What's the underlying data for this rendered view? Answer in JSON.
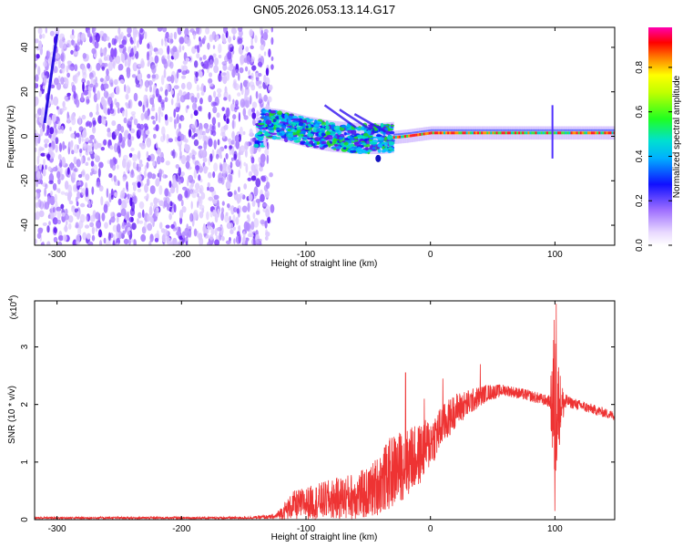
{
  "chart_data": [
    {
      "type": "heatmap",
      "title": "GN05.2026.053.13.14.G17",
      "xlabel": "Height of straight line (km)",
      "ylabel": "Frequency (Hz)",
      "xlim": [
        -318,
        148
      ],
      "ylim": [
        -49,
        49
      ],
      "xticks": [
        -300,
        -200,
        -100,
        0,
        100
      ],
      "xtick_labels": [
        "-300",
        "-200",
        "-100",
        "0",
        "100"
      ],
      "yticks": [
        -40,
        -20,
        0,
        20,
        40
      ],
      "ytick_labels": [
        "-40",
        "-20",
        "0",
        "20",
        "40"
      ],
      "colorbar": {
        "label": "Normalized spectral amplitude",
        "range": [
          0,
          0.98
        ],
        "ticks": [
          0.0,
          0.2,
          0.4,
          0.6,
          0.8
        ],
        "tick_labels": [
          "0.0",
          "0.2",
          "0.4",
          "0.6",
          "0.8"
        ]
      },
      "features": {
        "noise_region_x": [
          -318,
          -135
        ],
        "ridge_frequency_hz": [
          [
            -135,
            6
          ],
          [
            -120,
            5
          ],
          [
            -100,
            2
          ],
          [
            -80,
            0
          ],
          [
            -60,
            -1
          ],
          [
            -40,
            -1
          ],
          [
            -20,
            0
          ],
          [
            0,
            1.5
          ],
          [
            50,
            1.5
          ],
          [
            100,
            1.5
          ],
          [
            148,
            1.5
          ]
        ],
        "artifact_line": [
          [
            -310,
            6
          ],
          [
            -300,
            46
          ]
        ],
        "disturbance_at_x": 98
      }
    },
    {
      "type": "line",
      "xlabel": "Height of straight line (km)",
      "ylabel": "SNR (10 * v/v)",
      "y_multiplier": "(x10",
      "y_multiplier_exp": "4",
      "y_multiplier_close": ")",
      "xlim": [
        -318,
        148
      ],
      "ylim": [
        0,
        3.8
      ],
      "xticks": [
        -300,
        -200,
        -100,
        0,
        100
      ],
      "xtick_labels": [
        "-300",
        "-200",
        "-100",
        "0",
        "100"
      ],
      "yticks": [
        0,
        1,
        2,
        3
      ],
      "ytick_labels": [
        "0",
        "1",
        "2",
        "3"
      ],
      "color": "#ee3333",
      "envelope": [
        {
          "x": -318,
          "base": 0.03,
          "amp": 0.02
        },
        {
          "x": -150,
          "base": 0.03,
          "amp": 0.02
        },
        {
          "x": -125,
          "base": 0.05,
          "amp": 0.04
        },
        {
          "x": -110,
          "base": 0.25,
          "amp": 0.25
        },
        {
          "x": -80,
          "base": 0.35,
          "amp": 0.35
        },
        {
          "x": -50,
          "base": 0.45,
          "amp": 0.45
        },
        {
          "x": -30,
          "base": 0.85,
          "amp": 0.65
        },
        {
          "x": -10,
          "base": 1.1,
          "amp": 0.55
        },
        {
          "x": 0,
          "base": 1.35,
          "amp": 0.45
        },
        {
          "x": 20,
          "base": 1.9,
          "amp": 0.3
        },
        {
          "x": 45,
          "base": 2.2,
          "amp": 0.15
        },
        {
          "x": 60,
          "base": 2.25,
          "amp": 0.1
        },
        {
          "x": 80,
          "base": 2.15,
          "amp": 0.1
        },
        {
          "x": 96,
          "base": 2.05,
          "amp": 0.1
        },
        {
          "x": 99,
          "base": 2.0,
          "amp": 1.7
        },
        {
          "x": 105,
          "base": 2.0,
          "amp": 0.4
        },
        {
          "x": 110,
          "base": 2.05,
          "amp": 0.1
        },
        {
          "x": 148,
          "base": 1.8,
          "amp": 0.08
        }
      ],
      "spikes": [
        [
          -20,
          2.55
        ],
        [
          -15,
          1.6
        ],
        [
          -5,
          2.1
        ],
        [
          10,
          2.45
        ],
        [
          40,
          2.7
        ],
        [
          101,
          3.75
        ],
        [
          100,
          0.15
        ]
      ]
    }
  ]
}
